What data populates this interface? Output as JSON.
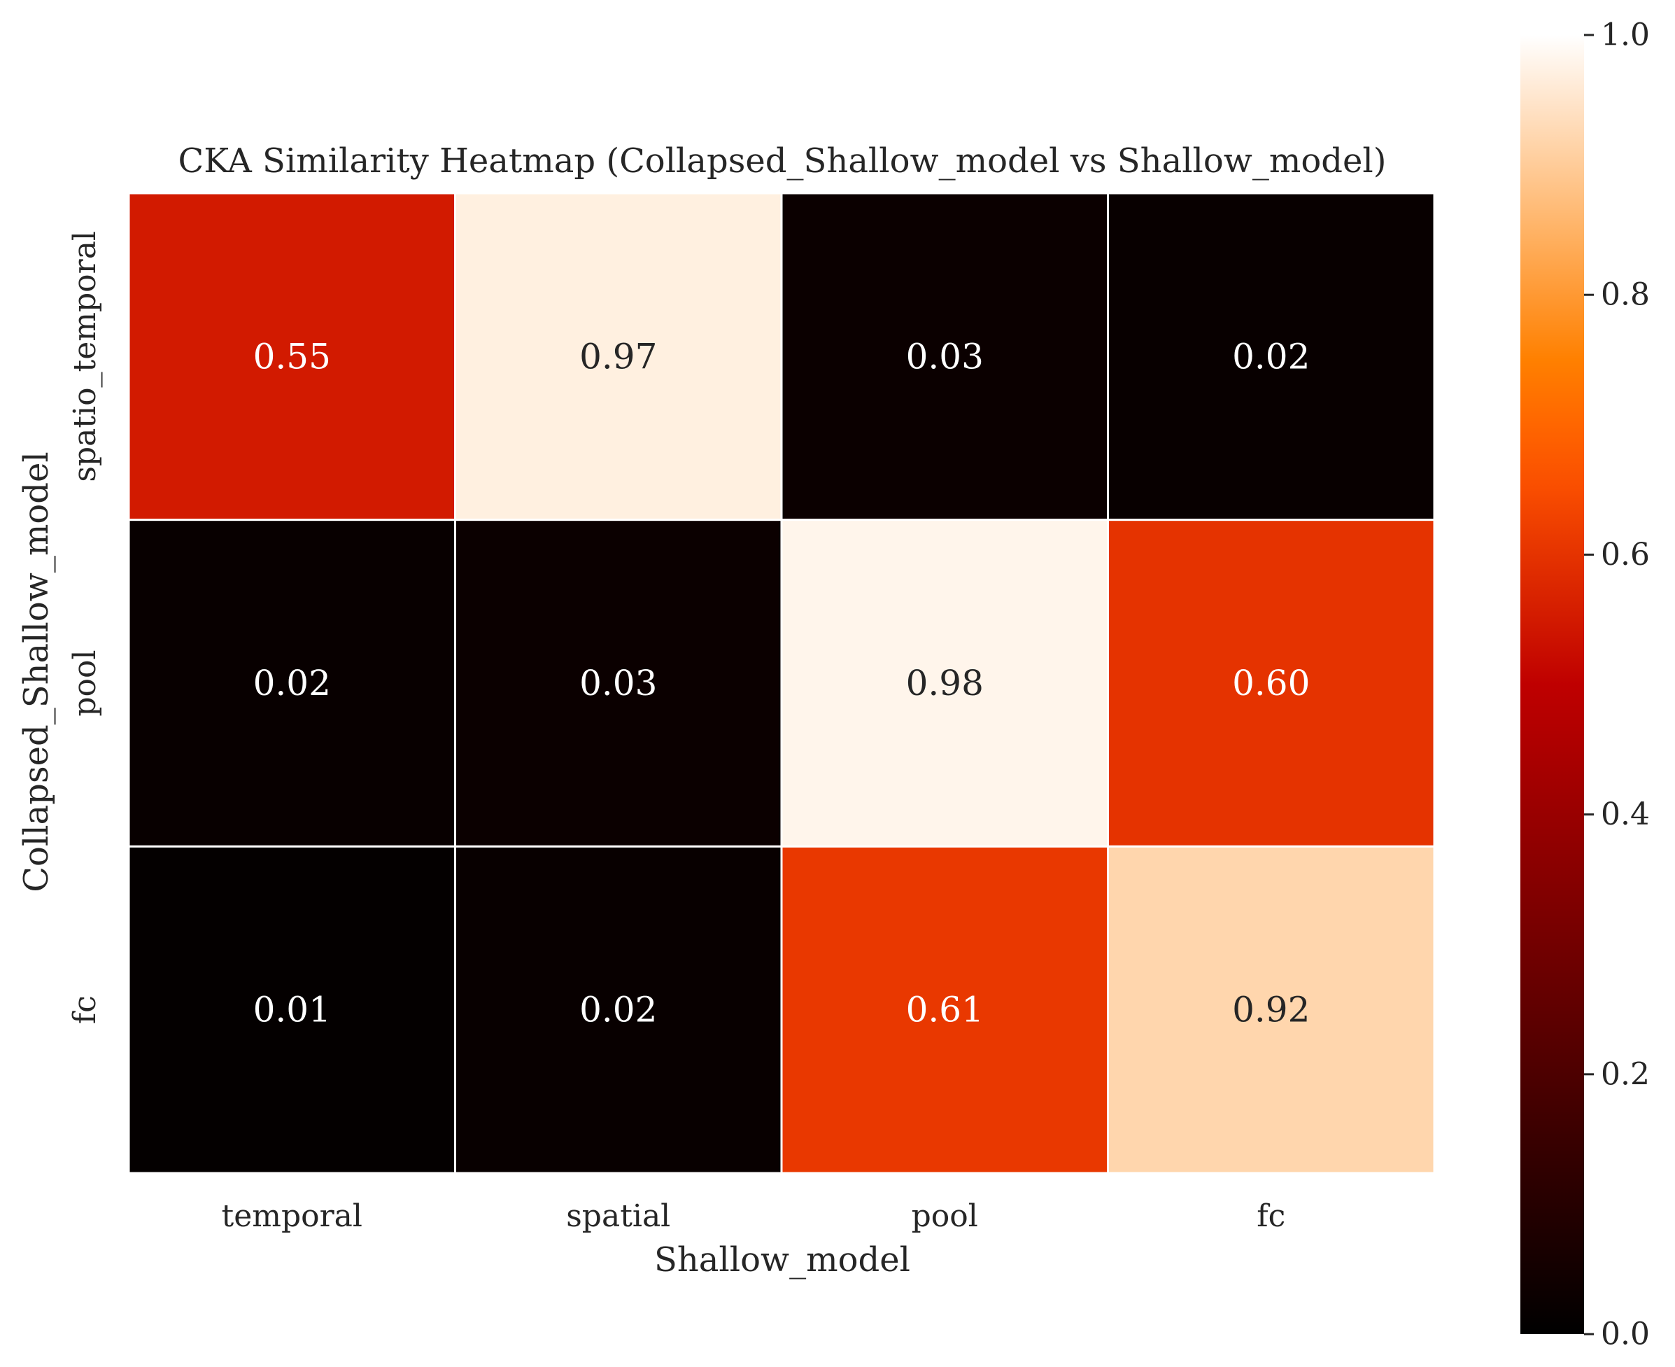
{
  "chart_data": {
    "type": "heatmap",
    "title": "CKA Similarity Heatmap (Collapsed_Shallow_model vs Shallow_model)",
    "xlabel": "Shallow_model",
    "ylabel": "Collapsed_Shallow_model",
    "x_categories": [
      "temporal",
      "spatial",
      "pool",
      "fc"
    ],
    "y_categories": [
      "spatio_temporal",
      "pool",
      "fc"
    ],
    "values": [
      [
        0.55,
        0.97,
        0.03,
        0.02
      ],
      [
        0.02,
        0.03,
        0.98,
        0.6
      ],
      [
        0.01,
        0.02,
        0.61,
        0.92
      ]
    ],
    "value_labels": [
      [
        "0.55",
        "0.97",
        "0.03",
        "0.02"
      ],
      [
        "0.02",
        "0.03",
        "0.98",
        "0.60"
      ],
      [
        "0.01",
        "0.02",
        "0.61",
        "0.92"
      ]
    ],
    "colorbar": {
      "range": [
        0.0,
        1.0
      ],
      "ticks": [
        0.0,
        0.2,
        0.4,
        0.6,
        0.8,
        1.0
      ],
      "tick_labels": [
        "0.0",
        "0.2",
        "0.4",
        "0.6",
        "0.8",
        "1.0"
      ],
      "colormap": "gist_heat"
    },
    "grid": false,
    "cell_border_color": "#ffffff",
    "annotation_dark_color": "#262626",
    "annotation_light_color": "#ffffff"
  }
}
